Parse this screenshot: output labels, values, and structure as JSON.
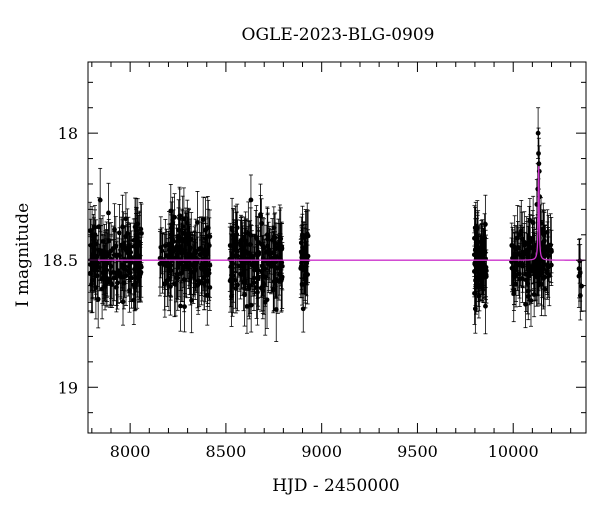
{
  "chart_data": {
    "type": "scatter",
    "title": "OGLE-2023-BLG-0909",
    "xlabel": "HJD - 2450000",
    "ylabel": "I magnitude",
    "xlim": [
      7780,
      10380
    ],
    "ylim": [
      19.18,
      17.72
    ],
    "y_inverted": true,
    "grid": false,
    "x_ticks": [
      8000,
      8500,
      9000,
      9500,
      10000
    ],
    "x_tick_labels": [
      "8000",
      "8500",
      "9000",
      "9500",
      "10000"
    ],
    "y_ticks": [
      18,
      18.5,
      19
    ],
    "y_tick_labels": [
      "18",
      "18.5",
      "19"
    ],
    "x_minor_step": 100,
    "y_minor_step": 0.1,
    "baseline_mag": 18.5,
    "typical_error": 0.1,
    "observing_seasons": [
      {
        "x_start": 7790,
        "x_end": 8060,
        "y_mean": 18.5,
        "y_scatter": 0.07,
        "points": 160
      },
      {
        "x_start": 8150,
        "x_end": 8420,
        "y_mean": 18.5,
        "y_scatter": 0.07,
        "points": 160
      },
      {
        "x_start": 8520,
        "x_end": 8800,
        "y_mean": 18.5,
        "y_scatter": 0.07,
        "points": 170
      },
      {
        "x_start": 8890,
        "x_end": 8935,
        "y_mean": 18.5,
        "y_scatter": 0.07,
        "points": 35
      },
      {
        "x_start": 9795,
        "x_end": 9860,
        "y_mean": 18.5,
        "y_scatter": 0.07,
        "points": 70
      },
      {
        "x_start": 9990,
        "x_end": 10200,
        "y_mean": 18.5,
        "y_scatter": 0.07,
        "points": 130
      },
      {
        "x_start": 10340,
        "x_end": 10370,
        "y_mean": 18.55,
        "y_scatter": 0.06,
        "points": 6
      }
    ],
    "peak_points": [
      {
        "x": 10130,
        "y": 18.0
      },
      {
        "x": 10132,
        "y": 18.08
      },
      {
        "x": 10134,
        "y": 18.12
      },
      {
        "x": 10136,
        "y": 18.15
      },
      {
        "x": 10128,
        "y": 18.22
      },
      {
        "x": 10138,
        "y": 18.25
      }
    ],
    "model": {
      "name": "",
      "color": "#cc33cc",
      "baseline": 18.5,
      "peak_time": 10133,
      "peak_mag": 18.13,
      "width": 5
    },
    "marker_color": "#000000"
  }
}
